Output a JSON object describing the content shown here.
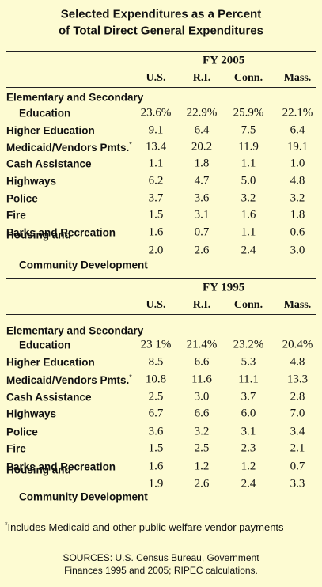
{
  "title": [
    "Selected Expenditures as a Percent",
    "of Total Direct General Expenditures"
  ],
  "sections": [
    {
      "year": "FY 2005",
      "columns": [
        "U.S.",
        "R.I.",
        "Conn.",
        "Mass."
      ],
      "rows": [
        {
          "label": [
            "Elementary and Secondary",
            "Education"
          ],
          "values": [
            "23.6%",
            "22.9%",
            "25.9%",
            "22.1%"
          ]
        },
        {
          "label": [
            "Higher Education"
          ],
          "values": [
            "9.1",
            "6.4",
            "7.5",
            "6.4"
          ]
        },
        {
          "label": [
            "Medicaid/Vendors Pmts."
          ],
          "marker": "*",
          "values": [
            "13.4",
            "20.2",
            "11.9",
            "19.1"
          ]
        },
        {
          "label": [
            "Cash Assistance"
          ],
          "values": [
            "1.1",
            "1.8",
            "1.1",
            "1.0"
          ]
        },
        {
          "label": [
            "Highways"
          ],
          "values": [
            "6.2",
            "4.7",
            "5.0",
            "4.8"
          ]
        },
        {
          "label": [
            "Police"
          ],
          "values": [
            "3.7",
            "3.6",
            "3.2",
            "3.2"
          ]
        },
        {
          "label": [
            "Fire"
          ],
          "values": [
            "1.5",
            "3.1",
            "1.6",
            "1.8"
          ]
        },
        {
          "label": [
            "Parks and Recreation"
          ],
          "values": [
            "1.6",
            "0.7",
            "1.1",
            "0.6"
          ]
        },
        {
          "label": [
            "Housing and",
            "Community Development"
          ],
          "values": [
            "2.0",
            "2.6",
            "2.4",
            "3.0"
          ]
        }
      ]
    },
    {
      "year": "FY 1995",
      "columns": [
        "U.S.",
        "R.I.",
        "Conn.",
        "Mass."
      ],
      "rows": [
        {
          "label": [
            "Elementary and Secondary",
            "Education"
          ],
          "values": [
            "23 1%",
            "21.4%",
            "23.2%",
            "20.4%"
          ]
        },
        {
          "label": [
            "Higher Education"
          ],
          "values": [
            "8.5",
            "6.6",
            "5.3",
            "4.8"
          ]
        },
        {
          "label": [
            "Medicaid/Vendors Pmts."
          ],
          "marker": "*",
          "values": [
            "10.8",
            "11.6",
            "11.1",
            "13.3"
          ]
        },
        {
          "label": [
            "Cash Assistance"
          ],
          "values": [
            "2.5",
            "3.0",
            "3.7",
            "2.8"
          ]
        },
        {
          "label": [
            "Highways"
          ],
          "values": [
            "6.7",
            "6.6",
            "6.0",
            "7.0"
          ]
        },
        {
          "label": [
            "Police"
          ],
          "values": [
            "3.6",
            "3.2",
            "3.1",
            "3.4"
          ]
        },
        {
          "label": [
            "Fire"
          ],
          "values": [
            "1.5",
            "2.5",
            "2.3",
            "2.1"
          ]
        },
        {
          "label": [
            "Parks and Recreation"
          ],
          "values": [
            "1.6",
            "1.2",
            "1.2",
            "0.7"
          ]
        },
        {
          "label": [
            "Housing and",
            "Community Development"
          ],
          "values": [
            "1.9",
            "2.6",
            "2.4",
            "3.3"
          ]
        }
      ]
    }
  ],
  "footnote": {
    "marker": "*",
    "text": "Includes Medicaid and other public welfare vendor payments"
  },
  "sources": [
    "SOURCES: U.S. Census Bureau, Government",
    "Finances 1995 and 2005; RIPEC calculations."
  ]
}
